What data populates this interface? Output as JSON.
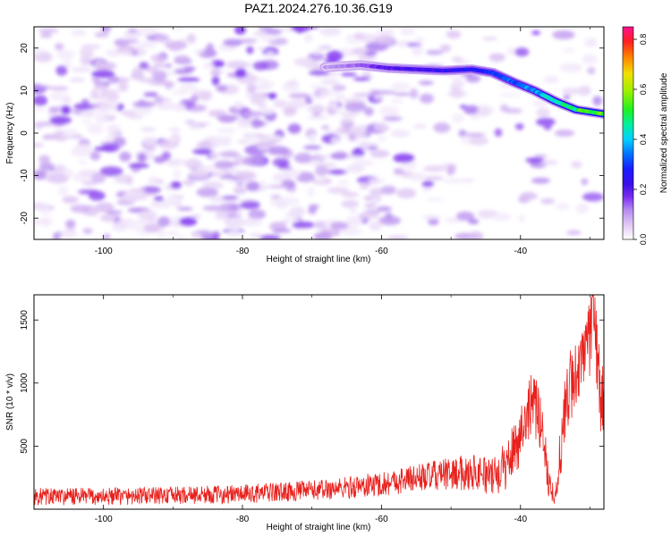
{
  "title": "PAZ1.2024.276.10.36.G19",
  "chart_data": [
    {
      "type": "heatmap",
      "xlabel": "Height of straight line (km)",
      "ylabel": "Frequency (Hz)",
      "xlim": [
        -110,
        -28
      ],
      "ylim": [
        -25,
        25
      ],
      "xticks": [
        -100,
        -80,
        -60,
        -40
      ],
      "yticks": [
        -20,
        -10,
        0,
        10,
        20
      ],
      "colorbar": {
        "label": "Normalized spectral amplitude",
        "range": [
          0.0,
          0.85
        ],
        "ticks": [
          "0.0",
          "0.2",
          "0.4",
          "0.6",
          "0.8"
        ],
        "colors": [
          "#ffffff",
          "#e0c8f4",
          "#b48af0",
          "#7a2cf0",
          "#4a10e8",
          "#1a1aff",
          "#0070ff",
          "#00d0ff",
          "#00f0a0",
          "#20f020",
          "#a0f000",
          "#f0e000",
          "#ff8000",
          "#ff2020",
          "#ff1090"
        ]
      },
      "ridge": [
        {
          "x": -68,
          "y": 15.5,
          "amp": 0.1
        },
        {
          "x": -63,
          "y": 16.0,
          "amp": 0.14
        },
        {
          "x": -59,
          "y": 15.3,
          "amp": 0.22
        },
        {
          "x": -55,
          "y": 15.0,
          "amp": 0.24
        },
        {
          "x": -51,
          "y": 14.7,
          "amp": 0.26
        },
        {
          "x": -47,
          "y": 15.0,
          "amp": 0.28
        },
        {
          "x": -44,
          "y": 14.2,
          "amp": 0.3
        },
        {
          "x": -41,
          "y": 12.0,
          "amp": 0.34
        },
        {
          "x": -38,
          "y": 10.0,
          "amp": 0.38
        },
        {
          "x": -35,
          "y": 7.5,
          "amp": 0.45
        },
        {
          "x": -32,
          "y": 5.5,
          "amp": 0.5
        },
        {
          "x": -28,
          "y": 4.5,
          "amp": 0.55
        }
      ]
    },
    {
      "type": "line",
      "xlabel": "Height of straight line (km)",
      "ylabel": "SNR (10 * v/v)",
      "xlim": [
        -110,
        -28
      ],
      "ylim": [
        0,
        1700
      ],
      "xticks": [
        -100,
        -80,
        -60,
        -40
      ],
      "yticks": [
        500,
        1000,
        1500
      ],
      "series": [
        {
          "color": "#e8211d",
          "x": [
            -110,
            -100,
            -90,
            -80,
            -70,
            -65,
            -60,
            -55,
            -50,
            -46,
            -44,
            -42,
            -40,
            -38.5,
            -37,
            -36,
            -35,
            -34,
            -33,
            -32,
            -31,
            -30,
            -29.5,
            -28.5,
            -28
          ],
          "base": [
            100,
            100,
            110,
            120,
            150,
            170,
            200,
            250,
            280,
            300,
            250,
            350,
            600,
            850,
            700,
            250,
            80,
            600,
            950,
            1100,
            1150,
            1350,
            1600,
            900,
            850
          ],
          "spread": [
            70,
            70,
            70,
            75,
            80,
            90,
            100,
            110,
            130,
            150,
            150,
            200,
            250,
            250,
            250,
            150,
            60,
            300,
            300,
            300,
            300,
            300,
            300,
            300,
            250
          ]
        }
      ]
    }
  ]
}
